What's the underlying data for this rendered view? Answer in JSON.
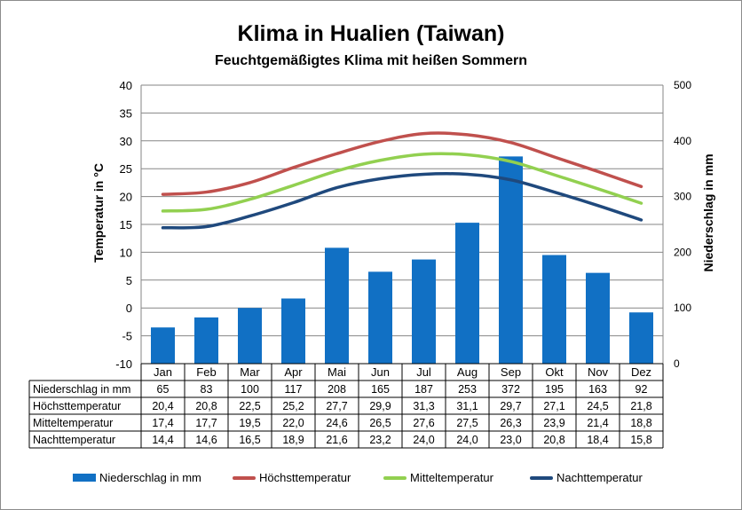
{
  "chart_data": {
    "type": "bar+line",
    "title": "Klima in Hualien (Taiwan)",
    "subtitle": "Feuchtgemäßigtes Klima mit heißen Sommern",
    "ylabel_left": "Temperatur in °C",
    "ylabel_right": "Niederschlag in mm",
    "ylim_left": [
      -10,
      40
    ],
    "yticks_left": [
      "40",
      "35",
      "30",
      "25",
      "20",
      "15",
      "10",
      "5",
      "0",
      "-5",
      "-10"
    ],
    "ylim_right": [
      0,
      500
    ],
    "yticks_right": [
      "500",
      "400",
      "300",
      "200",
      "100",
      "0"
    ],
    "grid": true,
    "legend_position": "bottom",
    "categories": [
      "Jan",
      "Feb",
      "Mar",
      "Apr",
      "Mai",
      "Jun",
      "Jul",
      "Aug",
      "Sep",
      "Okt",
      "Nov",
      "Dez"
    ],
    "series": [
      {
        "name": "Niederschlag in mm",
        "kind": "bar",
        "axis": "right",
        "color": "#1170c4",
        "values": [
          65,
          83,
          100,
          117,
          208,
          165,
          187,
          253,
          372,
          195,
          163,
          92
        ],
        "labels": [
          "65",
          "83",
          "100",
          "117",
          "208",
          "165",
          "187",
          "253",
          "372",
          "195",
          "163",
          "92"
        ]
      },
      {
        "name": "Höchsttemperatur",
        "kind": "line",
        "axis": "left",
        "color": "#c0504d",
        "values": [
          20.4,
          20.8,
          22.5,
          25.2,
          27.7,
          29.9,
          31.3,
          31.1,
          29.7,
          27.1,
          24.5,
          21.8
        ],
        "labels": [
          "20,4",
          "20,8",
          "22,5",
          "25,2",
          "27,7",
          "29,9",
          "31,3",
          "31,1",
          "29,7",
          "27,1",
          "24,5",
          "21,8"
        ]
      },
      {
        "name": "Mitteltemperatur",
        "kind": "line",
        "axis": "left",
        "color": "#92d050",
        "values": [
          17.4,
          17.7,
          19.5,
          22.0,
          24.6,
          26.5,
          27.6,
          27.5,
          26.3,
          23.9,
          21.4,
          18.8
        ],
        "labels": [
          "17,4",
          "17,7",
          "19,5",
          "22,0",
          "24,6",
          "26,5",
          "27,6",
          "27,5",
          "26,3",
          "23,9",
          "21,4",
          "18,8"
        ]
      },
      {
        "name": "Nachttemperatur",
        "kind": "line",
        "axis": "left",
        "color": "#1f497d",
        "values": [
          14.4,
          14.6,
          16.5,
          18.9,
          21.6,
          23.2,
          24.0,
          24.0,
          23.0,
          20.8,
          18.4,
          15.8
        ],
        "labels": [
          "14,4",
          "14,6",
          "16,5",
          "18,9",
          "21,6",
          "23,2",
          "24,0",
          "24,0",
          "23,0",
          "20,8",
          "18,4",
          "15,8"
        ]
      }
    ]
  }
}
